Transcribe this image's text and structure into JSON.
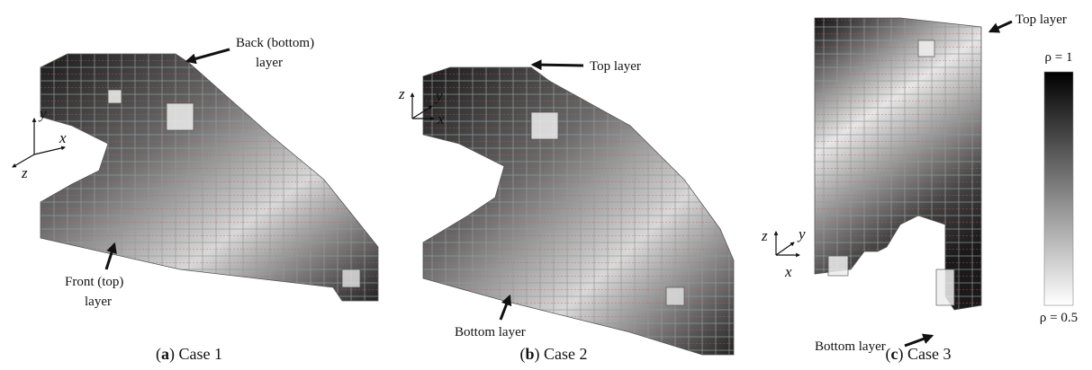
{
  "panels": [
    {
      "caption_parts": [
        "(",
        "a",
        ") Case 1"
      ],
      "axes": [
        "y",
        "x",
        "z"
      ],
      "annotations": [
        {
          "lines": [
            "Back (bottom)",
            "layer"
          ]
        },
        {
          "lines": [
            "Front (top)",
            "layer"
          ]
        }
      ]
    },
    {
      "caption_parts": [
        "(",
        "b",
        ") Case 2"
      ],
      "axes": [
        "z",
        "y",
        "x"
      ],
      "annotations": [
        {
          "lines": [
            "Top layer"
          ]
        },
        {
          "lines": [
            "Bottom layer"
          ]
        }
      ]
    },
    {
      "caption_parts": [
        "(",
        "c",
        ") Case 3"
      ],
      "axes": [
        "z",
        "y",
        "x"
      ],
      "annotations": [
        {
          "lines": [
            "Top layer"
          ]
        },
        {
          "lines": [
            "Bottom layer"
          ]
        }
      ],
      "colorbar": {
        "max_label": "ρ = 1",
        "min_label": "ρ = 0.5"
      }
    }
  ]
}
